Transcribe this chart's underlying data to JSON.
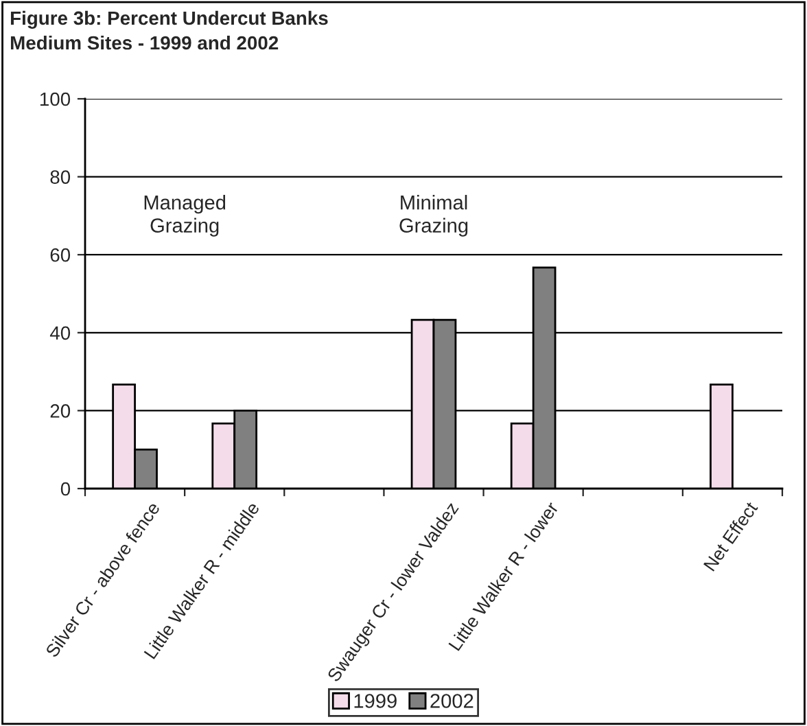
{
  "chart_data": {
    "type": "bar",
    "title": "Figure 3b: Percent Undercut Banks\nMedium Sites - 1999 and 2002",
    "categories": [
      "Silver Cr - above fence",
      "Little Walker R - middle",
      null,
      "Swauger Cr - lower Valdez",
      "Little Walker R - lower",
      null,
      "Net Effect"
    ],
    "series": [
      {
        "name": "1999",
        "color": "#f4dcea",
        "values": [
          26.7,
          16.7,
          null,
          43.3,
          16.7,
          null,
          26.7
        ]
      },
      {
        "name": "2002",
        "color": "#808080",
        "values": [
          10,
          20,
          null,
          43.3,
          56.7,
          null,
          null
        ]
      }
    ],
    "ylim": [
      0,
      100
    ],
    "yticks": [
      0,
      20,
      40,
      60,
      80,
      100
    ],
    "grid": "y",
    "legend": "bottom",
    "annotations": [
      "Managed\nGrazing",
      "Minimal\nGrazing"
    ]
  }
}
